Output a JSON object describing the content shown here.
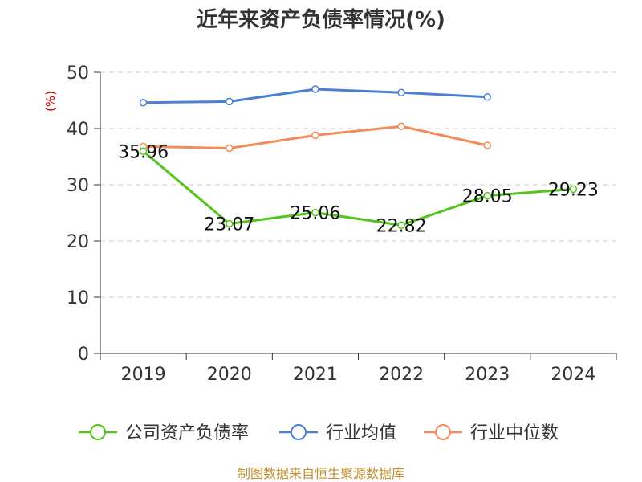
{
  "chart_data": {
    "type": "line",
    "title": "近年来资产负债率情况(%)",
    "ylabel": "(%)",
    "categories": [
      "2019",
      "2020",
      "2021",
      "2022",
      "2023",
      "2024"
    ],
    "ylim": [
      0,
      50
    ],
    "yticks": [
      0,
      10,
      20,
      30,
      40,
      50
    ],
    "grid": true,
    "legend_position": "bottom",
    "series": [
      {
        "name": "公司资产负债率",
        "color": "#52c41a",
        "values": [
          35.96,
          23.07,
          25.06,
          22.82,
          28.05,
          29.23
        ],
        "labels": [
          "35.96",
          "23.07",
          "25.06",
          "22.82",
          "28.05",
          "29.23"
        ]
      },
      {
        "name": "行业均值",
        "color": "#4a7fd6",
        "values": [
          44.6,
          44.8,
          47.0,
          46.4,
          45.6,
          null
        ]
      },
      {
        "name": "行业中位数",
        "color": "#f28c5a",
        "values": [
          36.8,
          36.5,
          38.8,
          40.4,
          37.0,
          null
        ]
      }
    ],
    "source": "制图数据来自恒生聚源数据库"
  }
}
